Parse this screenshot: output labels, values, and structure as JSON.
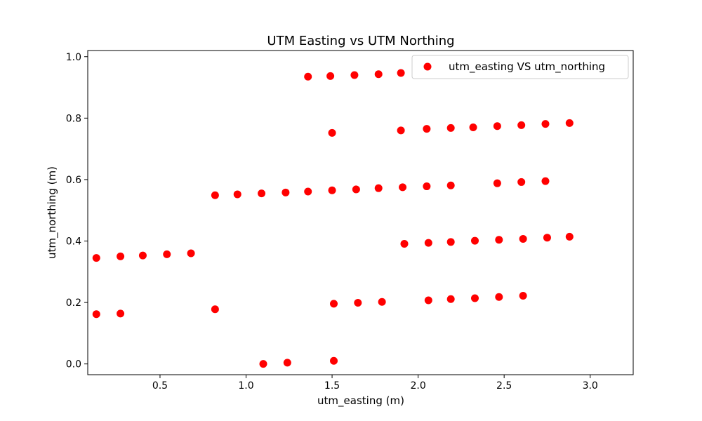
{
  "chart_data": {
    "type": "scatter",
    "title": "UTM Easting vs UTM Northing",
    "xlabel": "utm_easting (m)",
    "ylabel": "utm_northing (m)",
    "xlim": [
      0.08,
      3.25
    ],
    "ylim": [
      -0.035,
      1.02
    ],
    "xticks": [
      0.5,
      1.0,
      1.5,
      2.0,
      2.5,
      3.0
    ],
    "xtick_labels": [
      "0.5",
      "1.0",
      "1.5",
      "2.0",
      "2.5",
      "3.0"
    ],
    "yticks": [
      0.0,
      0.2,
      0.4,
      0.6,
      0.8,
      1.0
    ],
    "ytick_labels": [
      "0.0",
      "0.2",
      "0.4",
      "0.6",
      "0.8",
      "1.0"
    ],
    "grid": false,
    "legend_position": "top-right",
    "series": [
      {
        "name": "utm_easting VS utm_northing",
        "color": "#ff0000",
        "marker": "circle",
        "points": [
          [
            1.36,
            0.935
          ],
          [
            1.49,
            0.937
          ],
          [
            1.63,
            0.94
          ],
          [
            1.77,
            0.943
          ],
          [
            1.9,
            0.947
          ],
          [
            1.5,
            0.752
          ],
          [
            1.9,
            0.76
          ],
          [
            2.05,
            0.765
          ],
          [
            2.19,
            0.768
          ],
          [
            2.32,
            0.77
          ],
          [
            2.46,
            0.774
          ],
          [
            2.6,
            0.777
          ],
          [
            2.74,
            0.781
          ],
          [
            2.88,
            0.784
          ],
          [
            0.82,
            0.549
          ],
          [
            0.95,
            0.552
          ],
          [
            1.09,
            0.555
          ],
          [
            1.23,
            0.558
          ],
          [
            1.36,
            0.561
          ],
          [
            1.5,
            0.565
          ],
          [
            1.64,
            0.568
          ],
          [
            1.77,
            0.572
          ],
          [
            1.91,
            0.575
          ],
          [
            2.05,
            0.578
          ],
          [
            2.19,
            0.581
          ],
          [
            2.46,
            0.588
          ],
          [
            2.6,
            0.592
          ],
          [
            2.74,
            0.595
          ],
          [
            0.13,
            0.345
          ],
          [
            0.27,
            0.35
          ],
          [
            0.4,
            0.353
          ],
          [
            0.54,
            0.357
          ],
          [
            0.68,
            0.36
          ],
          [
            1.92,
            0.391
          ],
          [
            2.06,
            0.394
          ],
          [
            2.19,
            0.397
          ],
          [
            2.33,
            0.401
          ],
          [
            2.47,
            0.404
          ],
          [
            2.61,
            0.407
          ],
          [
            2.75,
            0.411
          ],
          [
            2.88,
            0.414
          ],
          [
            0.13,
            0.162
          ],
          [
            0.27,
            0.164
          ],
          [
            0.82,
            0.178
          ],
          [
            1.51,
            0.196
          ],
          [
            1.65,
            0.199
          ],
          [
            1.79,
            0.202
          ],
          [
            2.06,
            0.207
          ],
          [
            2.19,
            0.211
          ],
          [
            2.33,
            0.214
          ],
          [
            2.47,
            0.218
          ],
          [
            2.61,
            0.222
          ],
          [
            1.1,
            0.0
          ],
          [
            1.24,
            0.004
          ],
          [
            1.51,
            0.01
          ]
        ]
      }
    ]
  }
}
